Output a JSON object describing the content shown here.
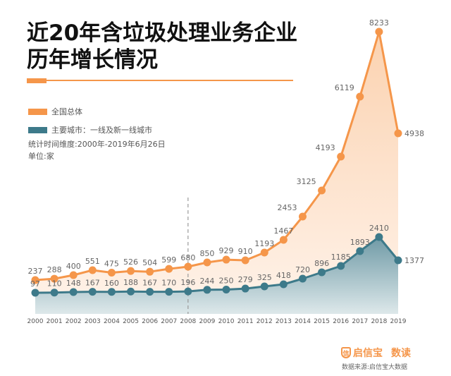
{
  "header": {
    "title_line1": "近20年含垃圾处理业务企业",
    "title_line2": "历年增长情况"
  },
  "legend": {
    "items": [
      {
        "label": "全国总体",
        "color": "#f5964a"
      },
      {
        "label": "主要城市：一线及新一线城市",
        "color": "#3d7a8a"
      }
    ],
    "period_note": "统计时间维度:2000年-2019年6月26日",
    "unit_note": "单位:家"
  },
  "footer": {
    "brand_name": "启信宝",
    "brand_sub": "数读",
    "source": "数据来源:启信宝大数据"
  },
  "chart_data": {
    "type": "area",
    "title": "近20年含垃圾处理业务企业历年增长情况",
    "xlabel": "",
    "ylabel": "单位:家",
    "grid": false,
    "legend_position": "top-left",
    "annotation_marker_year": "2008",
    "categories": [
      "2000",
      "2001",
      "2002",
      "2003",
      "2004",
      "2005",
      "2006",
      "2007",
      "2008",
      "2009",
      "2010",
      "2011",
      "2012",
      "2013",
      "2014",
      "2015",
      "2016",
      "2017",
      "2018",
      "2019"
    ],
    "series": [
      {
        "name": "全国总体",
        "color": "#f5964a",
        "fill": "#fde3cf",
        "values": [
          237,
          288,
          400,
          551,
          475,
          526,
          504,
          599,
          680,
          850,
          929,
          910,
          1193,
          1467,
          2453,
          3125,
          4193,
          6119,
          8233,
          4938
        ]
      },
      {
        "name": "主要城市：一线及新一线城市",
        "color": "#3d7a8a",
        "fill": "#9fbcc4",
        "values": [
          97,
          110,
          148,
          167,
          160,
          188,
          167,
          170,
          196,
          244,
          250,
          279,
          325,
          418,
          720,
          896,
          1185,
          1893,
          2410,
          1377
        ]
      }
    ]
  }
}
